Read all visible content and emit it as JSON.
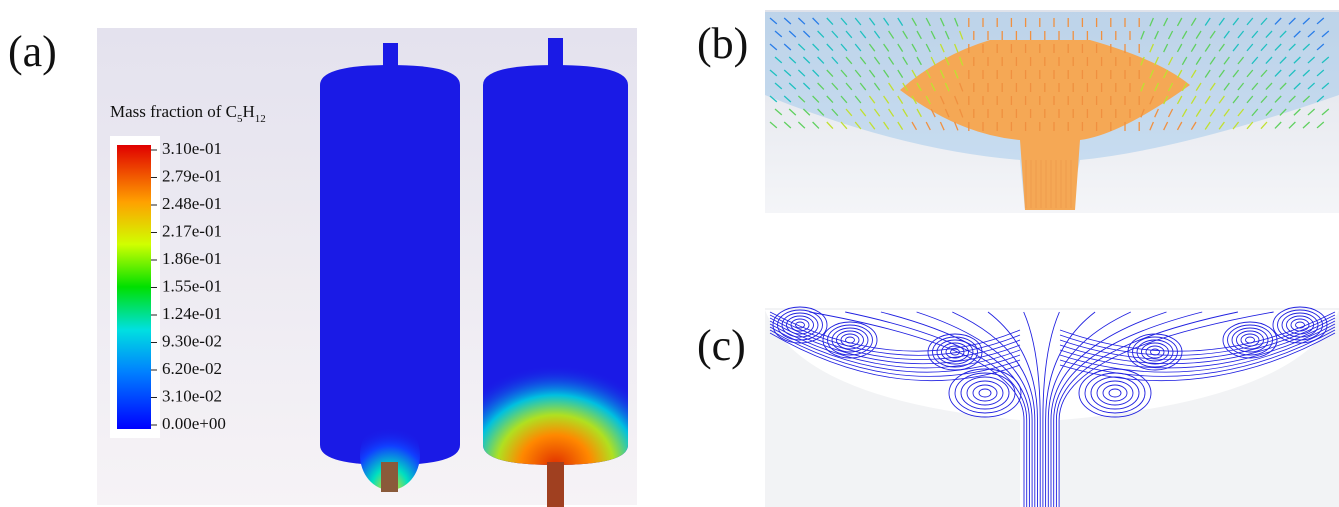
{
  "panels": {
    "a": {
      "label": "(a)",
      "colorbar": {
        "title": {
          "text": "Mass fraction of C",
          "sub1": "5",
          "mid": "H",
          "sub2": "12"
        },
        "labels": [
          "3.10e-01",
          "2.79e-01",
          "2.48e-01",
          "2.17e-01",
          "1.86e-01",
          "1.55e-01",
          "1.24e-01",
          "9.30e-02",
          "6.20e-02",
          "3.10e-02",
          "0.00e+00"
        ]
      }
    },
    "b": {
      "label": "(b)"
    },
    "c": {
      "label": "(c)"
    }
  }
}
